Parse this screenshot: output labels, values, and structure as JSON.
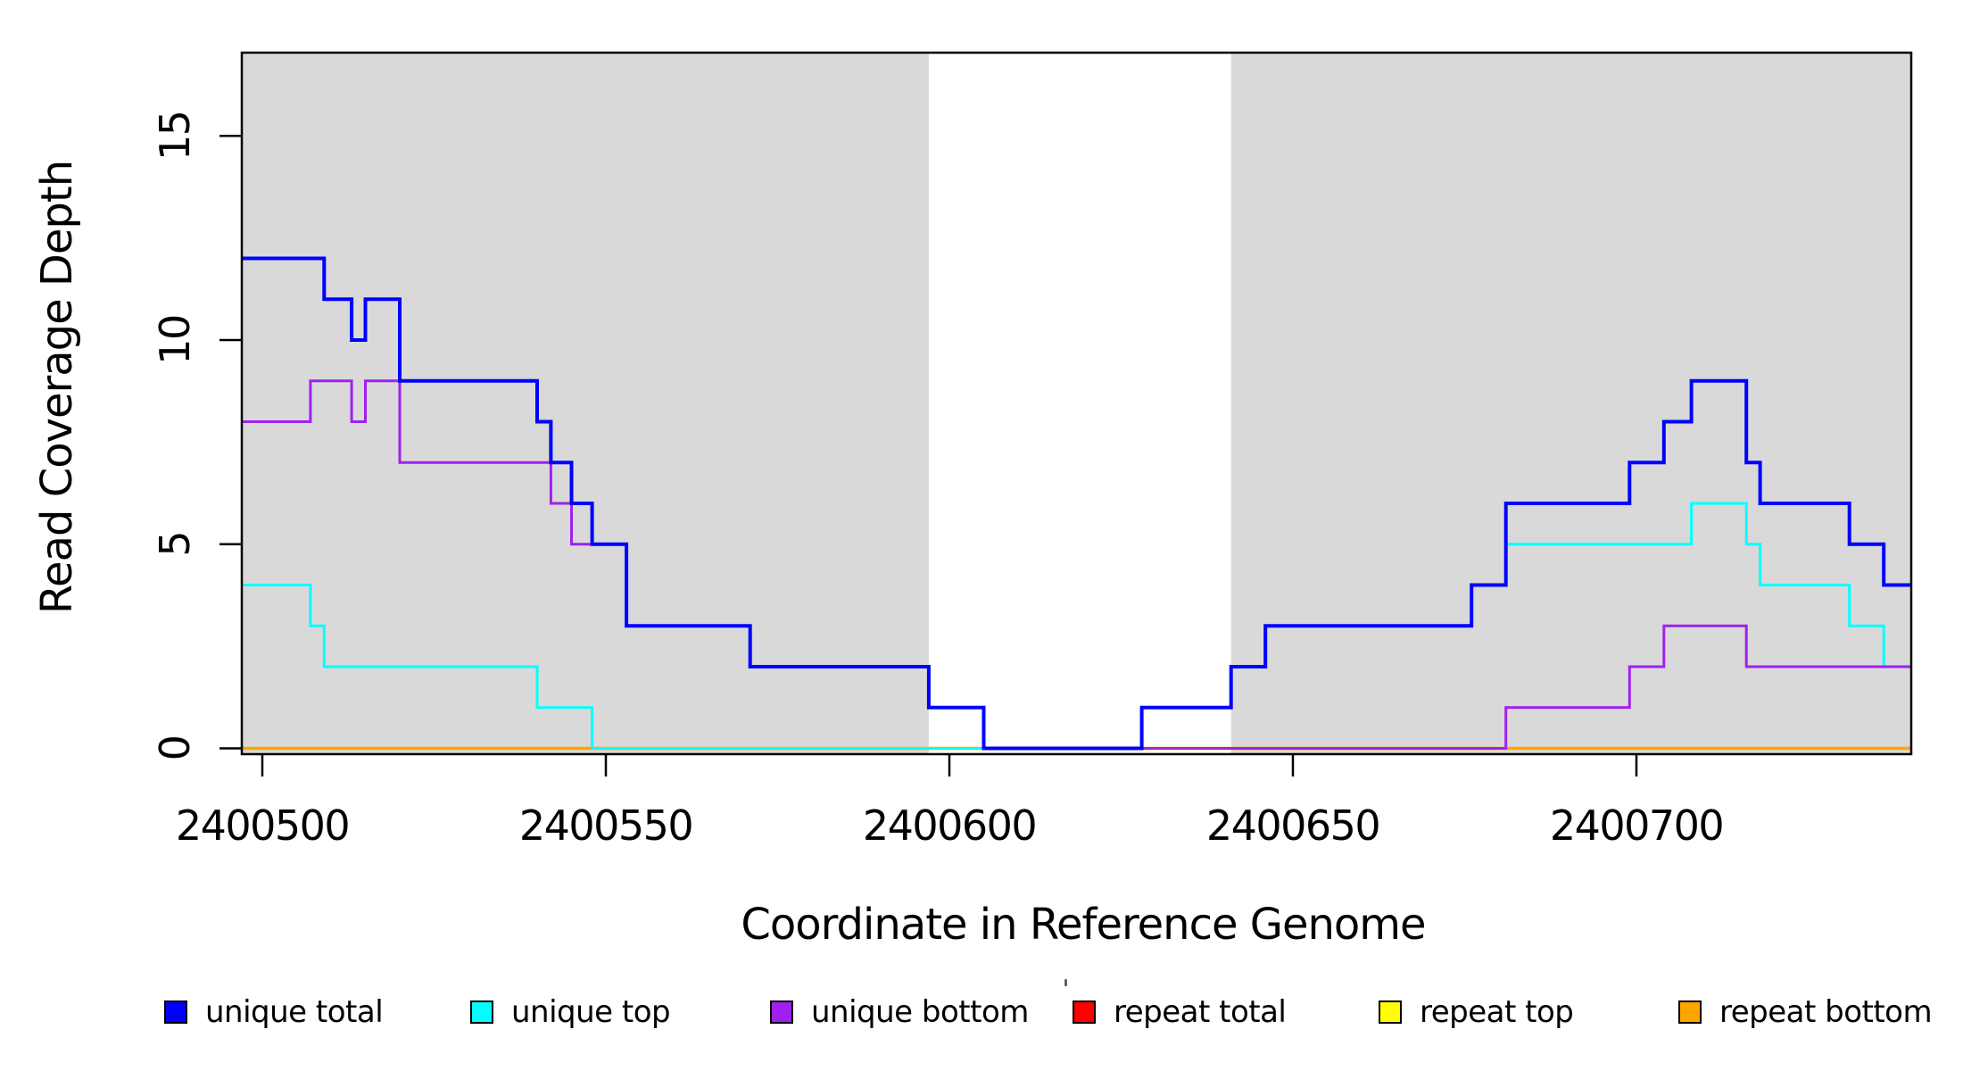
{
  "chart_data": {
    "type": "line",
    "subtype": "step-after",
    "title": "",
    "xlabel": "Coordinate in Reference Genome",
    "ylabel": "Read Coverage Depth",
    "x_ticks": [
      2400500,
      2400550,
      2400600,
      2400650,
      2400700
    ],
    "y_ticks": [
      0,
      5,
      10,
      15
    ],
    "xlim": [
      2400497,
      2400740
    ],
    "ylim": [
      0,
      17
    ],
    "grid": "off",
    "background_color": "#FFFFFF",
    "shaded_band_color": "#D9D9D9",
    "shaded_regions": [
      {
        "x0": 2400497,
        "x1": 2400597
      },
      {
        "x0": 2400641,
        "x1": 2400740
      }
    ],
    "series": [
      {
        "name": "repeat total",
        "color": "#FF0000",
        "width": 2.5,
        "points": [
          [
            2400497,
            0
          ],
          [
            2400740,
            0
          ]
        ]
      },
      {
        "name": "repeat top",
        "color": "#FFFF00",
        "width": 2.5,
        "points": [
          [
            2400497,
            0
          ],
          [
            2400740,
            0
          ]
        ]
      },
      {
        "name": "repeat bottom",
        "color": "#FFA500",
        "width": 3.5,
        "points": [
          [
            2400497,
            0
          ],
          [
            2400740,
            0
          ]
        ]
      },
      {
        "name": "unique top",
        "color": "#00FFFF",
        "width": 3,
        "points": [
          [
            2400497,
            4
          ],
          [
            2400507,
            3
          ],
          [
            2400509,
            2
          ],
          [
            2400540,
            1
          ],
          [
            2400548,
            0
          ],
          [
            2400628,
            1
          ],
          [
            2400641,
            2
          ],
          [
            2400646,
            3
          ],
          [
            2400676,
            4
          ],
          [
            2400681,
            5
          ],
          [
            2400708,
            6
          ],
          [
            2400716,
            5
          ],
          [
            2400718,
            4
          ],
          [
            2400731,
            3
          ],
          [
            2400736,
            2
          ],
          [
            2400740,
            2
          ]
        ]
      },
      {
        "name": "unique bottom",
        "color": "#A020F0",
        "width": 3,
        "points": [
          [
            2400497,
            8
          ],
          [
            2400507,
            9
          ],
          [
            2400513,
            8
          ],
          [
            2400515,
            9
          ],
          [
            2400520,
            7
          ],
          [
            2400542,
            6
          ],
          [
            2400545,
            5
          ],
          [
            2400553,
            3
          ],
          [
            2400571,
            2
          ],
          [
            2400597,
            1
          ],
          [
            2400605,
            0
          ],
          [
            2400681,
            1
          ],
          [
            2400699,
            2
          ],
          [
            2400704,
            3
          ],
          [
            2400716,
            2
          ],
          [
            2400740,
            2
          ]
        ]
      },
      {
        "name": "unique total",
        "color": "#0000FF",
        "width": 4,
        "points": [
          [
            2400497,
            12
          ],
          [
            2400509,
            11
          ],
          [
            2400513,
            10
          ],
          [
            2400515,
            11
          ],
          [
            2400520,
            9
          ],
          [
            2400540,
            8
          ],
          [
            2400542,
            7
          ],
          [
            2400545,
            6
          ],
          [
            2400548,
            5
          ],
          [
            2400553,
            3
          ],
          [
            2400571,
            2
          ],
          [
            2400597,
            1
          ],
          [
            2400605,
            0
          ],
          [
            2400628,
            1
          ],
          [
            2400641,
            2
          ],
          [
            2400646,
            3
          ],
          [
            2400676,
            4
          ],
          [
            2400681,
            6
          ],
          [
            2400699,
            7
          ],
          [
            2400704,
            8
          ],
          [
            2400708,
            9
          ],
          [
            2400716,
            7
          ],
          [
            2400718,
            6
          ],
          [
            2400731,
            5
          ],
          [
            2400736,
            4
          ],
          [
            2400740,
            4
          ]
        ]
      }
    ],
    "legend": [
      {
        "label": "unique total",
        "color": "#0000FF"
      },
      {
        "label": "unique top",
        "color": "#00FFFF"
      },
      {
        "label": "unique bottom",
        "color": "#A020F0"
      },
      {
        "label": "repeat total",
        "color": "#FF0000"
      },
      {
        "label": "repeat top",
        "color": "#FFFF00"
      },
      {
        "label": "repeat bottom",
        "color": "#FFA500"
      }
    ],
    "legend_position": "bottom"
  }
}
